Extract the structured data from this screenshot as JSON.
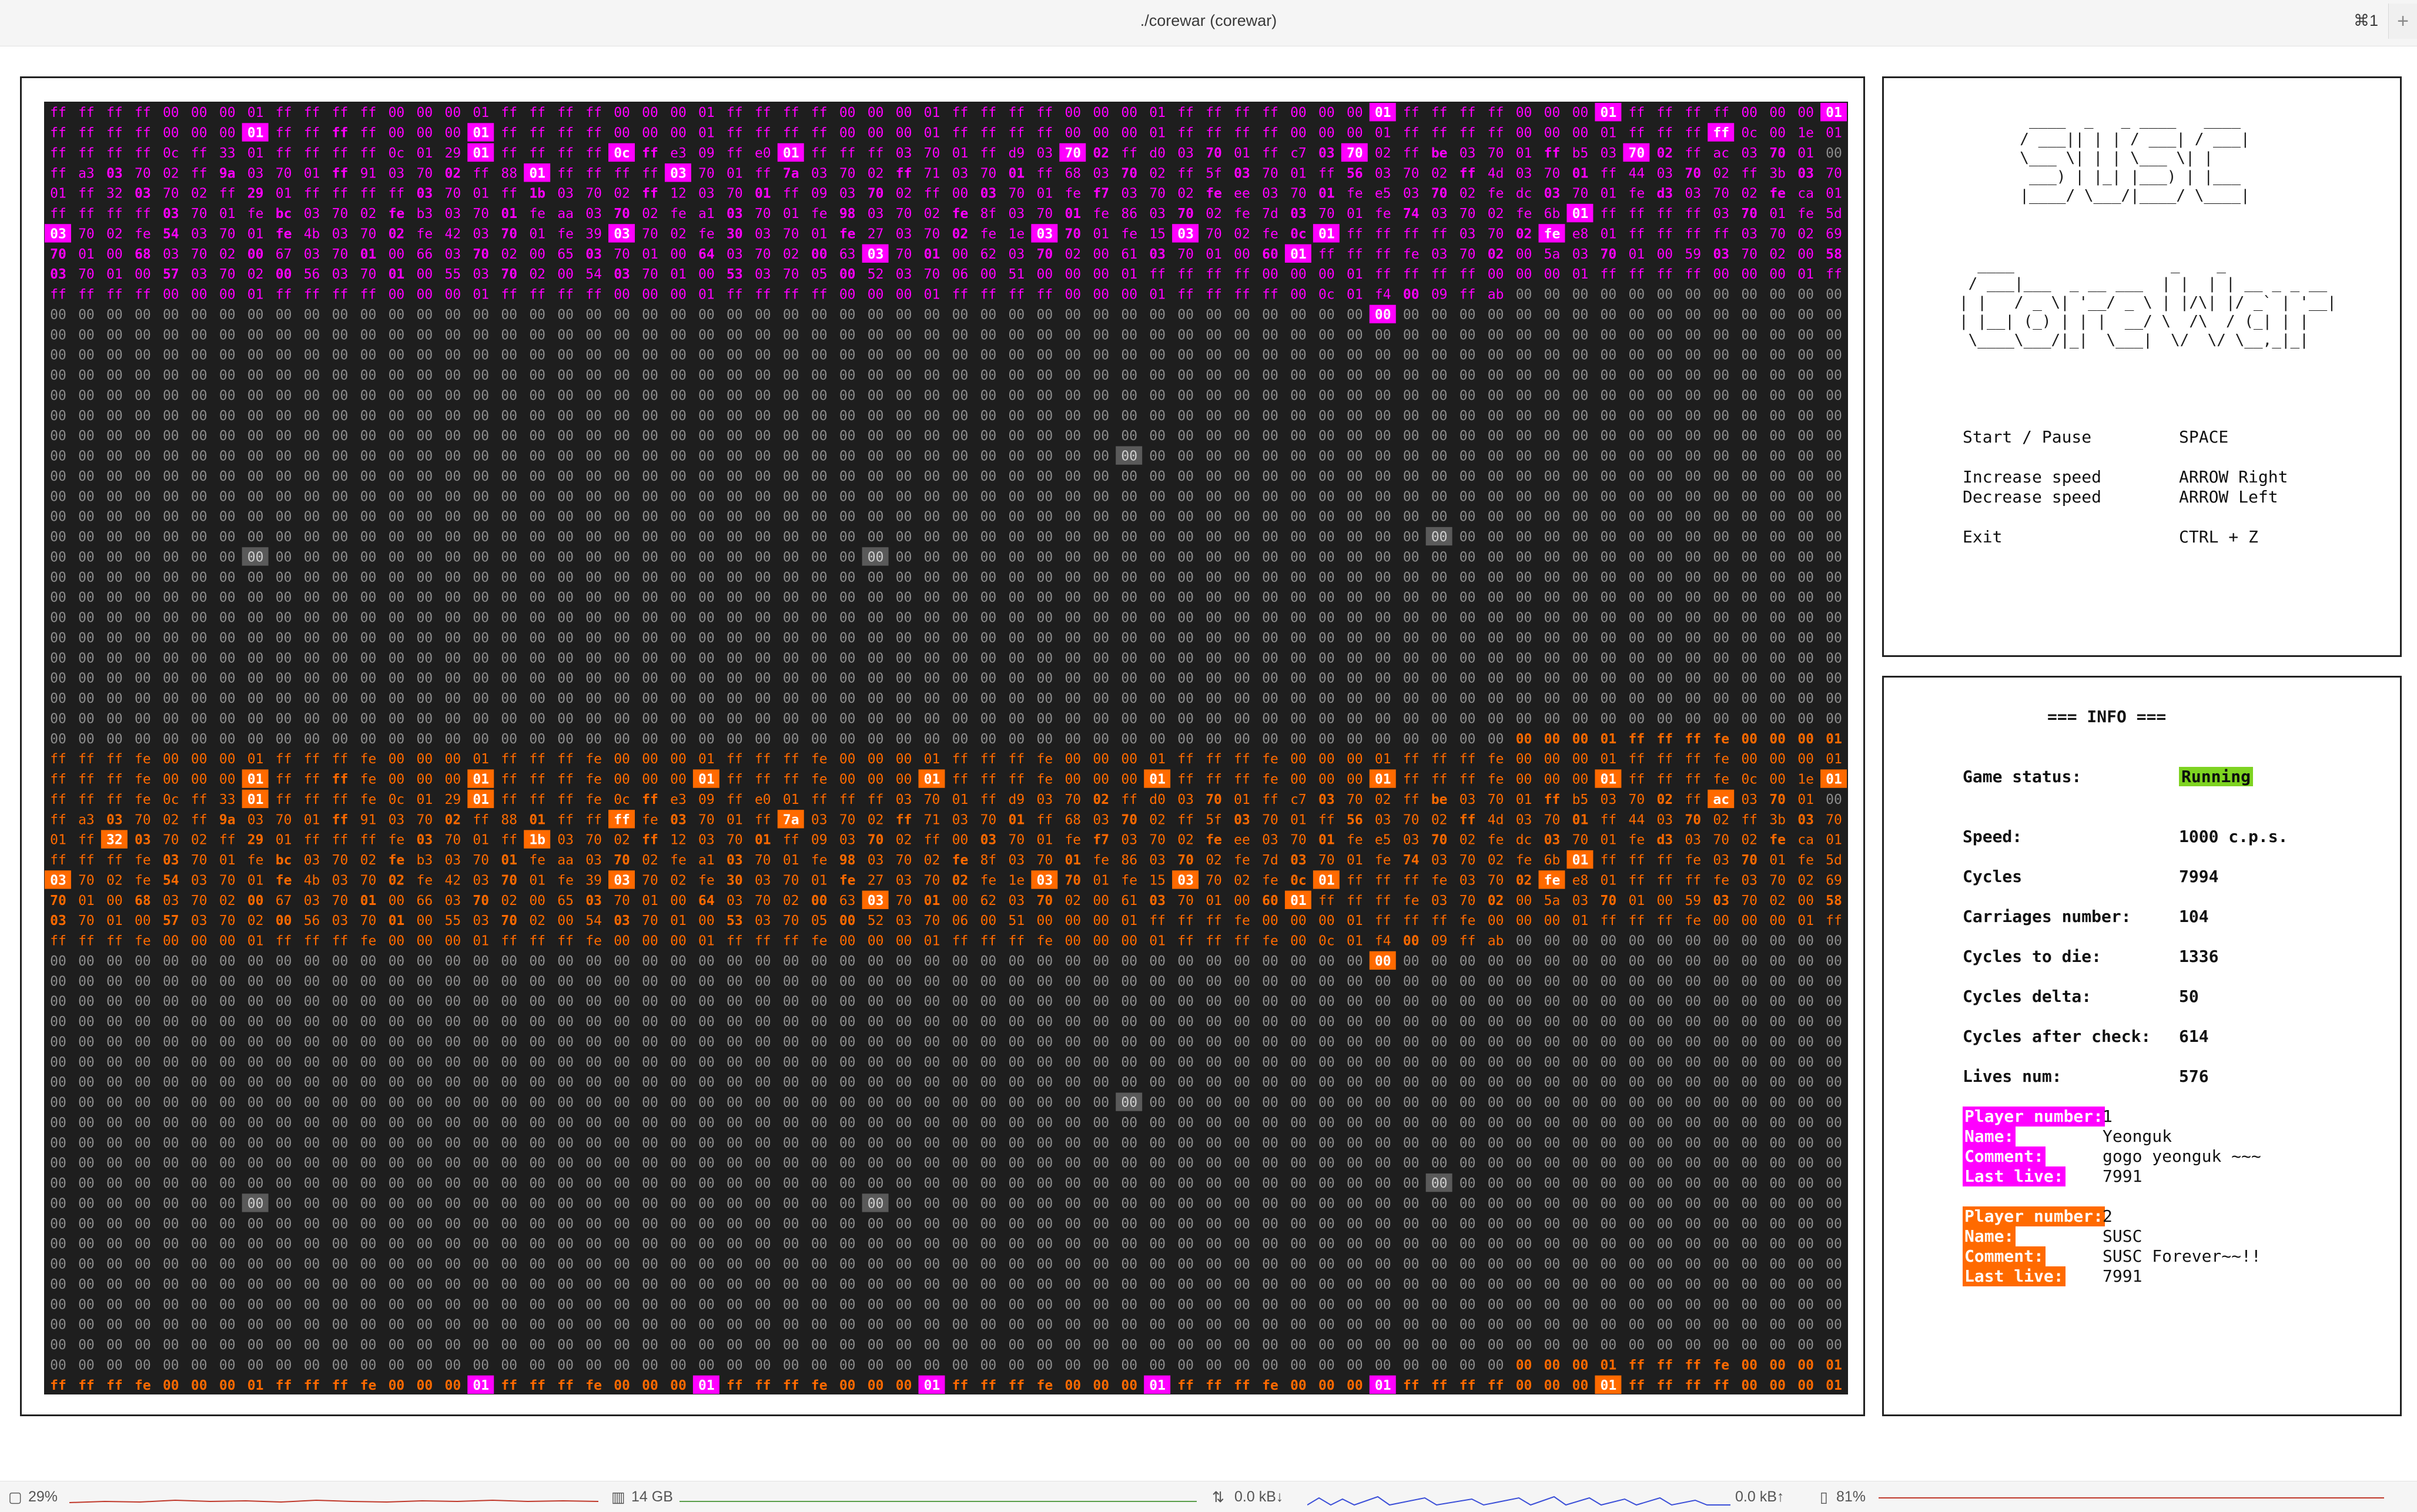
{
  "window": {
    "title": "./corewar (corewar)",
    "shortcut": "⌘1",
    "new_tab_icon": "plus-icon"
  },
  "arena": {
    "rows": 64,
    "cols": 64,
    "colors": {
      "background": "#1e1e1e",
      "empty": "#8c8c8c",
      "player1": "#ff00ff",
      "player2": "#ff6a00",
      "cursor_bg": "#ffffff",
      "idle_cursor": "#5a5a5a"
    },
    "player1_code": [
      "ff ff ff ff 00 00 00 01 ff ff ff ff 00 00 00 01 ff ff ff ff 00 00 00 01 ff ff ff ff 00 00 00 01 ff ff ff ff 00 00 00 01 ff ff ff ff 00 00 00 01 ff ff ff ff 00 00 00 01 ff ff ff ff 00 00 00 01",
      "ff ff ff ff 00 00 00 01 ff ff ff ff 00 00 00 01 ff ff ff ff 00 00 00 01 ff ff ff ff 00 00 00 01 ff ff ff ff 00 00 00 01 ff ff ff ff 00 00 00 01 ff ff ff ff 00 00 00 01 ff ff ff ff 0c 00 1e 01",
      "ff ff ff ff 0c ff 33 01 ff ff ff ff 0c 01 29 01 ff ff ff ff 0c ff e3 09 ff e0 01 ff ff ff 03 70 01 ff d9 03 70 02 ff d0 03 70 01 ff c7 03 70 02 ff be 03 70 01 ff b5 03 70 02 ff ac 03 70 01",
      "ff a3 03 70 02 ff 9a 03 70 01 ff 91 03 70 02 ff 88 01 ff ff ff ff 03 70 01 ff 7a 03 70 02 ff 71 03 70 01 ff 68 03 70 02 ff 5f 03 70 01 ff 56 03 70 02 ff 4d 03 70 01 ff 44 03 70 02 ff 3b 03 70",
      "01 ff 32 03 70 02 ff 29 01 ff ff ff ff 03 70 01 ff 1b 03 70 02 ff 12 03 70 01 ff 09 03 70 02 ff 00 03 70 01 fe f7 03 70 02 fe ee 03 70 01 fe e5 03 70 02 fe dc 03 70 01 fe d3 03 70 02 fe ca 01",
      "ff ff ff ff 03 70 01 fe bc 03 70 02 fe b3 03 70 01 fe aa 03 70 02 fe a1 03 70 01 fe 98 03 70 02 fe 8f 03 70 01 fe 86 03 70 02 fe 7d 03 70 01 fe 74 03 70 02 fe 6b 01 ff ff ff ff 03 70 01 fe 5d",
      "03 70 02 fe 54 03 70 01 fe 4b 03 70 02 fe 42 03 70 01 fe 39 03 70 02 fe 30 03 70 01 fe 27 03 70 02 fe 1e 03 70 01 fe 15 03 70 02 fe 0c 01 ff ff ff ff 03 70 02 fe e8 01 ff ff ff ff 03 70 02 69 03",
      "70 01 00 68 03 70 02 00 67 03 70 01 00 66 03 70 02 00 65 03 70 01 00 64 03 70 02 00 63 03 70 01 00 62 03 70 02 00 61 03 70 01 00 60 01 ff ff ff fe 03 70 02 00 5a 03 70 01 00 59 03 70 02 00 58",
      "03 70 01 00 57 03 70 02 00 56 03 70 01 00 55 03 70 02 00 54 03 70 01 00 53 03 70 05 00 52 03 70 06 00 51 00 00 00 01 ff ff ff ff 00 00 00 01 ff ff ff ff 00 00 00 01 ff ff ff ff 00 00 00 01 ff ff",
      "ff ff ff ff 00 00 00 01 ff ff ff ff 00 00 00 01 ff ff ff ff 00 00 00 01 ff ff ff ff 00 00 00 01 ff ff ff ff 00 00 00 01 ff ff ff ff 00 0c 01 f4 00 09 ff ab"
    ],
    "player1_cursor_cols": [
      [],
      [
        10
      ],
      [
        21,
        37,
        41,
        45,
        49,
        53,
        57,
        61
      ],
      [
        2,
        6,
        10,
        14,
        17,
        22,
        26,
        30,
        34,
        38,
        42,
        46,
        50,
        54,
        58,
        62
      ],
      [
        3,
        7,
        13,
        17,
        21,
        25,
        29,
        33,
        37,
        41,
        45,
        49,
        53,
        57,
        61
      ],
      [
        4,
        8,
        12,
        16,
        20,
        24,
        28,
        32,
        36,
        40,
        44,
        48,
        54,
        60
      ],
      [
        0,
        4,
        8,
        12,
        16,
        20,
        24,
        28,
        32,
        36,
        40,
        44,
        52
      ],
      [
        0,
        3,
        7,
        11,
        15,
        19,
        23,
        27,
        31,
        35,
        39,
        43,
        51,
        55,
        59,
        63
      ],
      [
        0,
        4,
        8,
        12,
        16,
        20,
        24,
        28
      ],
      [
        48
      ]
    ],
    "player1_highlights": [
      [
        0,
        47
      ],
      [
        0,
        55
      ],
      [
        0,
        63
      ],
      [
        1,
        7
      ],
      [
        1,
        15
      ],
      [
        1,
        59
      ],
      [
        2,
        15
      ],
      [
        2,
        20
      ],
      [
        2,
        26
      ],
      [
        2,
        36
      ],
      [
        2,
        46
      ],
      [
        2,
        56
      ],
      [
        3,
        17
      ],
      [
        3,
        22
      ],
      [
        5,
        54
      ],
      [
        6,
        0
      ],
      [
        6,
        20
      ],
      [
        6,
        35
      ],
      [
        6,
        40
      ],
      [
        6,
        45
      ],
      [
        6,
        53
      ],
      [
        7,
        29
      ],
      [
        7,
        44
      ],
      [
        10,
        47
      ]
    ],
    "player2_code": [
      "ff ff ff fe 00 00 00 01 ff ff ff fe 00 00 00 01 ff ff ff fe 00 00 00 01 ff ff ff fe 00 00 00 01 ff ff ff fe 00 00 00 01 ff ff ff fe 00 00 00 01 ff ff ff fe 00 00 00 01 ff ff ff fe 00 00 00 01",
      "ff ff ff fe 00 00 00 01 ff ff ff fe 00 00 00 01 ff ff ff fe 00 00 00 01 ff ff ff fe 00 00 00 01 ff ff ff fe 00 00 00 01 ff ff ff fe 00 00 00 01 ff ff ff fe 00 00 00 01 ff ff ff fe 0c 00 1e 01",
      "ff ff ff fe 0c ff 33 01 ff ff ff fe 0c 01 29 01 ff ff ff fe 0c ff e3 09 ff e0 01 ff ff ff 03 70 01 ff d9 03 70 02 ff d0 03 70 01 ff c7 03 70 02 ff be 03 70 01 ff b5 03 70 02 ff ac 03 70 01",
      "ff a3 03 70 02 ff 9a 03 70 01 ff 91 03 70 02 ff 88 01 ff ff ff fe 03 70 01 ff 7a 03 70 02 ff 71 03 70 01 ff 68 03 70 02 ff 5f 03 70 01 ff 56 03 70 02 ff 4d 03 70 01 ff 44 03 70 02 ff 3b 03 70",
      "01 ff 32 03 70 02 ff 29 01 ff ff ff fe 03 70 01 ff 1b 03 70 02 ff 12 03 70 01 ff 09 03 70 02 ff 00 03 70 01 fe f7 03 70 02 fe ee 03 70 01 fe e5 03 70 02 fe dc 03 70 01 fe d3 03 70 02 fe ca 01",
      "ff ff ff fe 03 70 01 fe bc 03 70 02 fe b3 03 70 01 fe aa 03 70 02 fe a1 03 70 01 fe 98 03 70 02 fe 8f 03 70 01 fe 86 03 70 02 fe 7d 03 70 01 fe 74 03 70 02 fe 6b 01 ff ff ff fe 03 70 01 fe 5d",
      "03 70 02 fe 54 03 70 01 fe 4b 03 70 02 fe 42 03 70 01 fe 39 03 70 02 fe 30 03 70 01 fe 27 03 70 02 fe 1e 03 70 01 fe 15 03 70 02 fe 0c 01 ff ff ff fe 03 70 02 fe e8 01 ff ff ff fe 03 70 02 69 03",
      "70 01 00 68 03 70 02 00 67 03 70 01 00 66 03 70 02 00 65 03 70 01 00 64 03 70 02 00 63 03 70 01 00 62 03 70 02 00 61 03 70 01 00 60 01 ff ff ff fe 03 70 02 00 5a 03 70 01 00 59 03 70 02 00 58",
      "03 70 01 00 57 03 70 02 00 56 03 70 01 00 55 03 70 02 00 54 03 70 01 00 53 03 70 05 00 52 03 70 06 00 51 00 00 00 01 ff ff ff fe 00 00 00 01 ff ff ff fe 00 00 00 01 ff ff ff fe 00 00 00 01 ff ff",
      "ff ff ff fe 00 00 00 01 ff ff ff fe 00 00 00 01 ff ff ff fe 00 00 00 01 ff ff ff fe 00 00 00 01 ff ff ff fe 00 00 00 01 ff ff ff fe 00 0c 01 f4 00 09 ff ab"
    ],
    "player2_highlights": [
      [
        1,
        7
      ],
      [
        1,
        15
      ],
      [
        1,
        23
      ],
      [
        1,
        31
      ],
      [
        1,
        39
      ],
      [
        1,
        47
      ],
      [
        1,
        55
      ],
      [
        1,
        63
      ],
      [
        2,
        7
      ],
      [
        2,
        15
      ],
      [
        2,
        59
      ],
      [
        3,
        20
      ],
      [
        3,
        26
      ],
      [
        4,
        2
      ],
      [
        4,
        17
      ],
      [
        5,
        54
      ],
      [
        6,
        0
      ],
      [
        6,
        20
      ],
      [
        6,
        35
      ],
      [
        6,
        40
      ],
      [
        6,
        45
      ],
      [
        6,
        53
      ],
      [
        7,
        29
      ],
      [
        7,
        44
      ],
      [
        10,
        47
      ]
    ],
    "prefix_row_31": "00 00 00 01 ff ff ff fe 00 00 00 01",
    "prefix_row_63": "00 00 00 01 ff ff ff fe 00 00 00 01",
    "bottom_row": "ff ff ff fe 00 00 00 01 ff ff ff fe 00 00 00 01 ff ff ff fe 00 00 00 01 ff ff ff fe 00 00 00 01 ff ff ff fe 00 00 00 01 ff ff ff fe 00 00 00 01 ff ff ff ff 00 00 00 01 ff ff ff ff 00 00 00 01",
    "bottom_row_highlights": [
      15,
      23,
      31,
      39,
      47,
      55
    ],
    "idle_cursors": [
      [
        17,
        38
      ],
      [
        21,
        49
      ],
      [
        22,
        7
      ],
      [
        22,
        29
      ],
      [
        49,
        38
      ],
      [
        53,
        49
      ],
      [
        54,
        7
      ],
      [
        54,
        29
      ]
    ]
  },
  "logo": {
    "susc_art": "   ____  _   _ ____   ____\n  / ___|| | | / ___| / ___|\n  \\___ \\| | | \\___ \\| |\n   ___) | |_| |___) | |___\n  |____/ \\___/|____/ \\____|",
    "corewar_art": "  ____                 _    _\n / ___|___  _ __ ___  | |  | | __ _ _ __\n| |   / _ \\| '__/ _ \\ | |/\\| |/ _` | '__|\n| |__| (_) | | |  __/ \\  /\\  / (_| | |\n \\____\\___/|_|  \\___|  \\/  \\/ \\__,_|_|"
  },
  "controls": [
    {
      "action": "Start / Pause",
      "key": "SPACE"
    },
    {
      "action": "Increase speed",
      "key": "ARROW Right"
    },
    {
      "action": "Decrease speed",
      "key": "ARROW Left"
    },
    {
      "action": "Exit",
      "key": "CTRL + Z"
    }
  ],
  "info": {
    "header": "=== INFO ===",
    "game_status_label": "Game status:",
    "game_status": "Running",
    "speed_label": "Speed:",
    "speed": "1000 c.p.s.",
    "cycles_label": "Cycles",
    "cycles": "7994",
    "carriages_label": "Carriages number:",
    "carriages": "104",
    "cycles_to_die_label": "Cycles to die:",
    "cycles_to_die": "1336",
    "cycles_delta_label": "Cycles delta:",
    "cycles_delta": "50",
    "cycles_after_check_label": "Cycles after check:",
    "cycles_after_check": "614",
    "lives_num_label": "Lives num:",
    "lives_num": "576",
    "player_number_label": "Player number:",
    "name_label": "Name:",
    "comment_label": "Comment:",
    "last_live_label": "Last live:",
    "players": [
      {
        "number": "1",
        "name": "Yeonguk",
        "comment": "gogo yeonguk ~~~",
        "last_live": "7991",
        "color": "#ff00ff"
      },
      {
        "number": "2",
        "name": "SUSC",
        "comment": "SUSC Forever~~!!",
        "last_live": "7991",
        "color": "#ff6a00"
      }
    ]
  },
  "statusbar": {
    "cpu": "29%",
    "memory": "14 GB",
    "net_down": "0.0 kB↓",
    "net_up": "0.0 kB↑",
    "battery": "81%",
    "cpu_icon": "cpu-icon",
    "memory_icon": "memory-icon",
    "network_icon": "network-icon",
    "battery_icon": "battery-icon"
  }
}
